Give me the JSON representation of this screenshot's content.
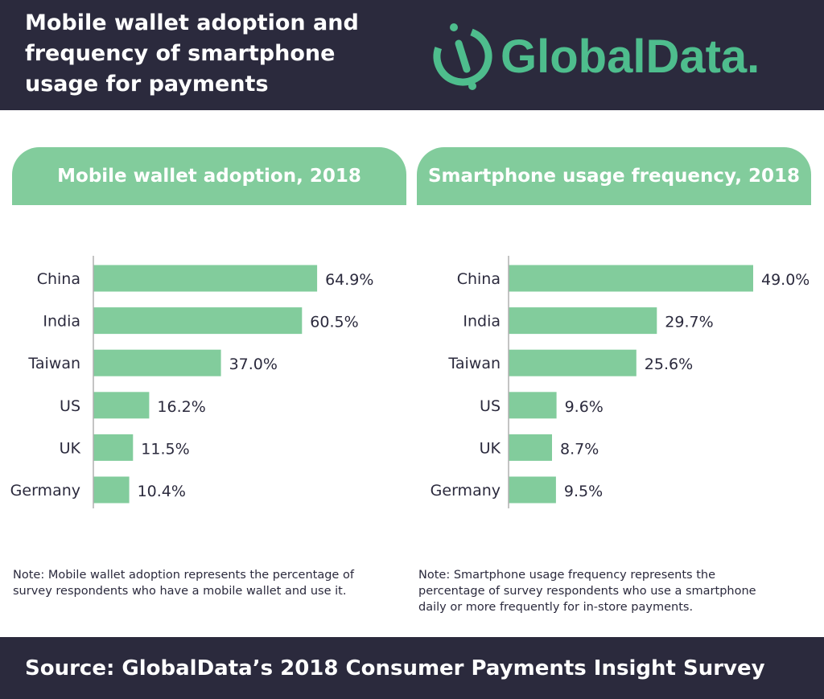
{
  "header": {
    "title_lines": [
      "Mobile wallet adoption and",
      "frequency of smartphone",
      "usage for payments"
    ],
    "logo_text": "GlobalData."
  },
  "colors": {
    "dark": "#2b2a3d",
    "accent": "#82cc9c",
    "logo": "#4ebd8d"
  },
  "panels": [
    {
      "heading": "Mobile wallet adoption, 2018",
      "note_lines": [
        "Note: Mobile wallet adoption represents the percentage of",
        "survey respondents who have a mobile wallet and use it."
      ]
    },
    {
      "heading": "Smartphone usage frequency, 2018",
      "note_lines": [
        "Note: Smartphone usage frequency represents the",
        "percentage of survey respondents who use a smartphone",
        "daily or more frequently for in-store payments."
      ]
    }
  ],
  "chart_data": [
    {
      "type": "bar",
      "orientation": "horizontal",
      "title": "Mobile wallet adoption, 2018",
      "categories": [
        "China",
        "India",
        "Taiwan",
        "US",
        "UK",
        "Germany"
      ],
      "values": [
        64.9,
        60.5,
        37.0,
        16.2,
        11.5,
        10.4
      ],
      "labels": [
        "64.9%",
        "60.5%",
        "37.0%",
        "16.2%",
        "11.5%",
        "10.4%"
      ],
      "unit": "%",
      "xlim": [
        0,
        70
      ]
    },
    {
      "type": "bar",
      "orientation": "horizontal",
      "title": "Smartphone usage frequency, 2018",
      "categories": [
        "China",
        "India",
        "Taiwan",
        "US",
        "UK",
        "Germany"
      ],
      "values": [
        49.0,
        29.7,
        25.6,
        9.6,
        8.7,
        9.5
      ],
      "labels": [
        "49.0%",
        "29.7%",
        "25.6%",
        "9.6%",
        "8.7%",
        "9.5%"
      ],
      "unit": "%",
      "xlim": [
        0,
        49
      ]
    }
  ],
  "footer": {
    "source": "Source: GlobalData’s 2018 Consumer Payments Insight Survey"
  }
}
